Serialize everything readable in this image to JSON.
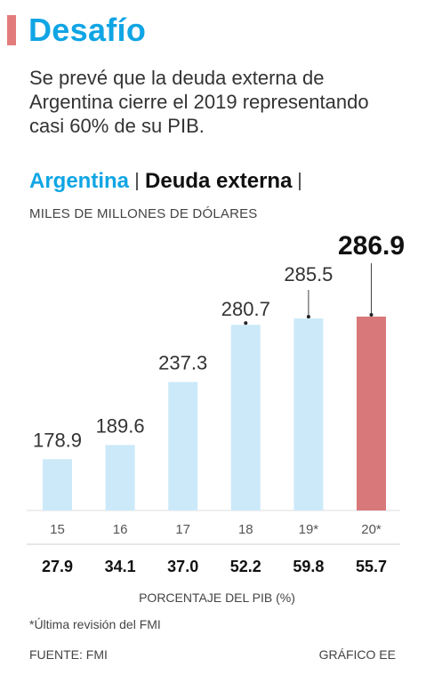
{
  "header": {
    "title": "Desafío"
  },
  "subtitle": "Se prevé que la deuda externa de Argentina cierre el 2019 representando casi 60% de su PIB.",
  "chart_header": {
    "country": "Argentina",
    "metric": "Deuda externa"
  },
  "units": "MILES DE MILLONES DE DÓLARES",
  "pib_label": "PORCENTAJE DEL PIB (%)",
  "footnote": "*Última revisión del FMI",
  "source": "FUENTE: FMI",
  "credit": "GRÁFICO EE",
  "colors": {
    "accent": "#10a5e4",
    "bar": "#cce9f9",
    "highlight_bar": "#d9787a",
    "header_mark": "#e27c7c"
  },
  "chart_data": {
    "type": "bar",
    "categories": [
      "15",
      "16",
      "17",
      "18",
      "19*",
      "20*"
    ],
    "values": [
      178.9,
      189.6,
      237.3,
      280.7,
      285.5,
      286.9
    ],
    "value_labels": [
      "178.9",
      "189.6",
      "237.3",
      "280.7",
      "285.5",
      "286.9"
    ],
    "pib_percent": [
      "27.9",
      "34.1",
      "37.0",
      "52.2",
      "59.8",
      "55.7"
    ],
    "highlight_index": 5,
    "ylim": [
      140,
      300
    ],
    "grid": false,
    "title": "",
    "xlabel": "",
    "ylabel": ""
  }
}
